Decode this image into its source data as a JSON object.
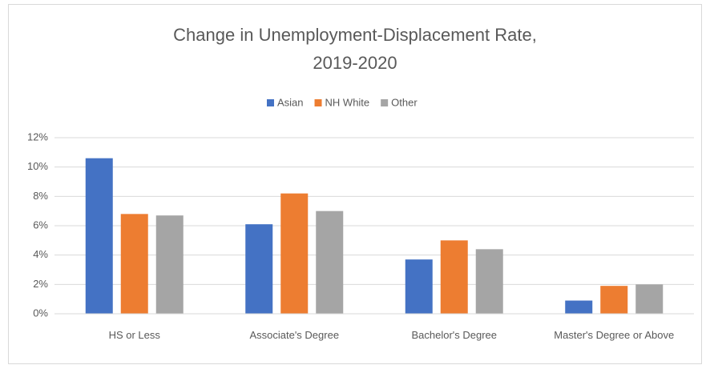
{
  "chart_data": {
    "type": "bar",
    "title": [
      "Change in Unemployment-Displacement Rate,",
      "2019-2020"
    ],
    "categories": [
      "HS or Less",
      "Associate's Degree",
      "Bachelor's Degree",
      "Master's Degree or Above"
    ],
    "series": [
      {
        "name": "Asian",
        "color": "#4472c4",
        "values": [
          10.6,
          6.1,
          3.7,
          0.9
        ]
      },
      {
        "name": "NH White",
        "color": "#ed7d31",
        "values": [
          6.8,
          8.2,
          5.0,
          1.9
        ]
      },
      {
        "name": "Other",
        "color": "#a5a5a5",
        "values": [
          6.7,
          7.0,
          4.4,
          2.0
        ]
      }
    ],
    "ylim": [
      0,
      12
    ],
    "yticks": [
      {
        "value": 0,
        "label": "0%"
      },
      {
        "value": 2,
        "label": "2%"
      },
      {
        "value": 4,
        "label": "4%"
      },
      {
        "value": 6,
        "label": "6%"
      },
      {
        "value": 8,
        "label": "8%"
      },
      {
        "value": 10,
        "label": "10%"
      },
      {
        "value": 12,
        "label": "12%"
      }
    ],
    "grid": true,
    "legend": "top"
  }
}
